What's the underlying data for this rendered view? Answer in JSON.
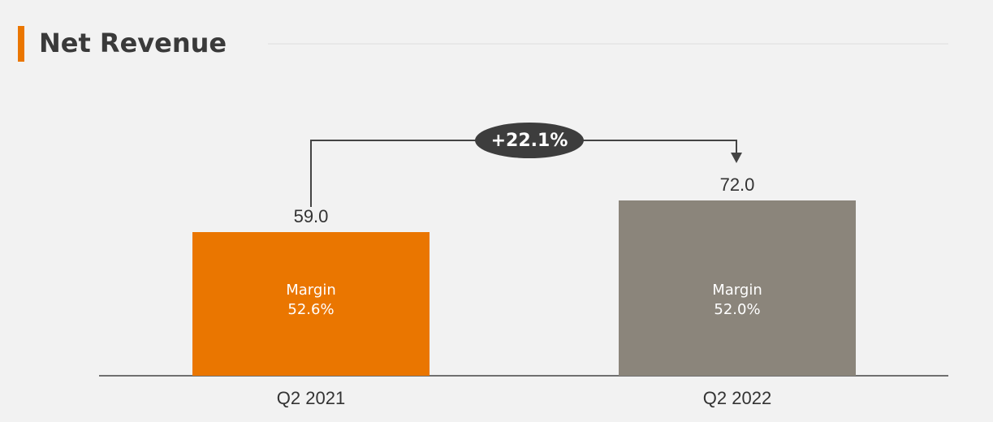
{
  "chart_data": {
    "type": "bar",
    "title": "Net Revenue",
    "categories": [
      "Q2 2021",
      "Q2 2022"
    ],
    "values": [
      59.0,
      72.0
    ],
    "value_labels": [
      "59.0",
      "72.0"
    ],
    "colors": [
      "#ea7600",
      "#8b857b"
    ],
    "margins": {
      "label": "Margin",
      "values": [
        52.6,
        52.0
      ],
      "value_labels": [
        "52.6%",
        "52.0%"
      ]
    },
    "change": {
      "value": 22.1,
      "label": "+22.1%"
    }
  }
}
